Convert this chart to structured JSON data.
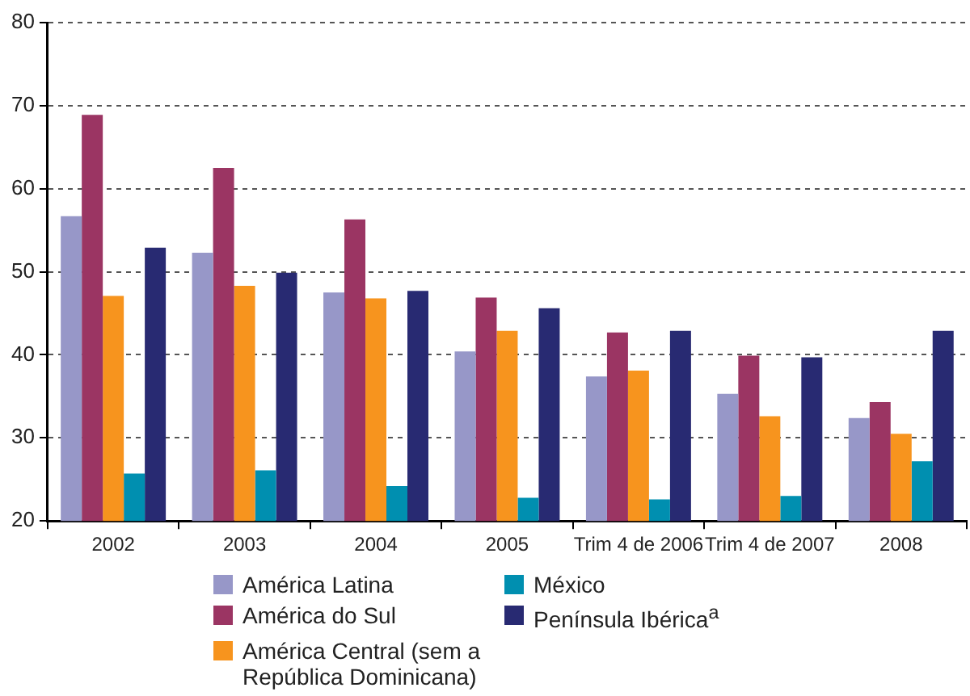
{
  "chart_data": {
    "type": "bar",
    "categories": [
      "2002",
      "2003",
      "2004",
      "2005",
      "Trim 4 de 2006",
      "Trim 4 de 2007",
      "2008"
    ],
    "series": [
      {
        "name": "América Latina",
        "color": "#9797c8",
        "values": [
          56.7,
          52.3,
          47.5,
          40.4,
          37.4,
          35.3,
          32.4
        ]
      },
      {
        "name": "América do Sul",
        "color": "#9b3563",
        "values": [
          68.9,
          62.5,
          56.3,
          46.9,
          42.7,
          39.9,
          34.3
        ]
      },
      {
        "name": "América Central (sem a República Dominicana)",
        "color": "#f7941e",
        "values": [
          47.1,
          48.3,
          46.8,
          42.9,
          38.1,
          32.6,
          30.5
        ]
      },
      {
        "name": "México",
        "color": "#008fb0",
        "values": [
          25.7,
          26.1,
          24.2,
          22.8,
          22.6,
          23.0,
          27.2
        ]
      },
      {
        "name": "Península Ibérica$^{a}$",
        "color": "#282a72",
        "values": [
          52.9,
          49.9,
          47.7,
          45.6,
          42.9,
          39.7,
          42.9
        ]
      }
    ],
    "ylim": [
      20,
      80
    ],
    "yticks": [
      20,
      30,
      40,
      50,
      60,
      70,
      80
    ],
    "grid": "y",
    "legend": "bottom"
  }
}
